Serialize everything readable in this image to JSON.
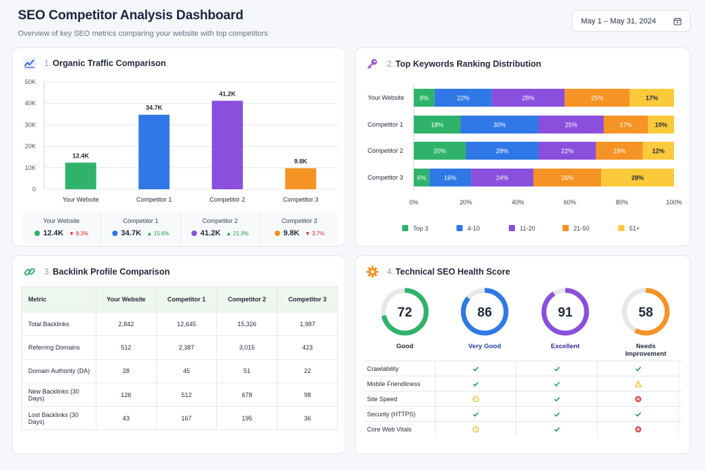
{
  "header": {
    "title": "SEO Competitor Analysis Dashboard",
    "subtitle": "Overview of key SEO metrics comparing your website with top competitors",
    "date_range": "May 1 – May 31, 2024",
    "calendar_icon": "calendar-icon"
  },
  "colors": {
    "green": "#2fb36b",
    "blue": "#2f78e6",
    "purple": "#8a4fdc",
    "orange": "#f59324",
    "yellow": "#fcc93a",
    "red": "#e24747"
  },
  "traffic": {
    "num": "1.",
    "title": "Organic Traffic Comparison",
    "icon": "trend-chart-icon",
    "stats": [
      {
        "label": "Your Website",
        "value": "12.4K",
        "change": "8.3%",
        "dir": "down",
        "color": "#2fb36b"
      },
      {
        "label": "Competitor 1",
        "value": "34.7K",
        "change": "15.6%",
        "dir": "up",
        "color": "#2f78e6"
      },
      {
        "label": "Competitor 2",
        "value": "41.2K",
        "change": "21.3%",
        "dir": "up",
        "color": "#8a4fdc"
      },
      {
        "label": "Competitor 3",
        "value": "9.8K",
        "change": "3.7%",
        "dir": "down",
        "color": "#f59324"
      }
    ]
  },
  "keywords": {
    "num": "2.",
    "title": "Top Keywords Ranking Distribution",
    "icon": "key-icon"
  },
  "backlinks": {
    "num": "3.",
    "title": "Backlink Profile Comparison",
    "icon": "link-icon",
    "columns": [
      "Metric",
      "Your Website",
      "Competitor 1",
      "Competitor 2",
      "Competitor 3"
    ],
    "rows": [
      [
        "Total Backlinks",
        "2,842",
        "12,645",
        "15,326",
        "1,987"
      ],
      [
        "Referring Domains",
        "512",
        "2,387",
        "3,015",
        "423"
      ],
      [
        "Domain Authority (DA)",
        "28",
        "45",
        "51",
        "22"
      ],
      [
        "New Backlinks (30 Days)",
        "126",
        "512",
        "678",
        "98"
      ],
      [
        "Lost Backlinks (30 Days)",
        "43",
        "167",
        "195",
        "36"
      ]
    ]
  },
  "technical": {
    "num": "4.",
    "title": "Technical SEO Health Score",
    "icon": "gear-icon",
    "scores": [
      {
        "value": 72,
        "label": "Good",
        "color": "#2fb36b",
        "label_color": "#1f2937"
      },
      {
        "value": 86,
        "label": "Very Good",
        "color": "#2f78e6",
        "label_color": "#1e40af"
      },
      {
        "value": 91,
        "label": "Excellent",
        "color": "#8a4fdc",
        "label_color": "#3b2a99"
      },
      {
        "value": 58,
        "label": "Needs Improvement",
        "color": "#f59324",
        "label_color": "#1f2937"
      }
    ],
    "checks": [
      {
        "name": "Crawlability",
        "status": [
          "check",
          "check",
          "check"
        ]
      },
      {
        "name": "Mobile Friendliness",
        "status": [
          "check",
          "check",
          "warning"
        ]
      },
      {
        "name": "Site Speed",
        "status": [
          "info",
          "check",
          "error"
        ]
      },
      {
        "name": "Security (HTTPS)",
        "status": [
          "check",
          "check",
          "check"
        ]
      },
      {
        "name": "Core Web Vitals",
        "status": [
          "info",
          "check",
          "error"
        ]
      }
    ]
  },
  "chart_data": [
    {
      "type": "bar",
      "title": "Organic Traffic Comparison",
      "categories": [
        "Your Website",
        "Competitor 1",
        "Competitor 2",
        "Competitor 3"
      ],
      "values": [
        12.4,
        34.7,
        41.2,
        9.8
      ],
      "value_labels": [
        "12.4K",
        "34.7K",
        "41.2K",
        "9.8K"
      ],
      "colors": [
        "#2fb36b",
        "#2f78e6",
        "#8a4fdc",
        "#f59324"
      ],
      "yticks": [
        "0",
        "10K",
        "20K",
        "30K",
        "40K",
        "50K"
      ],
      "ylim": [
        0,
        50
      ],
      "grid": true
    },
    {
      "type": "bar",
      "orientation": "horizontal-stacked-percent",
      "title": "Top Keywords Ranking Distribution",
      "categories": [
        "Your Website",
        "Competitor 1",
        "Competitor 2",
        "Competitor 3"
      ],
      "series": [
        {
          "name": "Top 3",
          "color": "#2fb36b",
          "values": [
            8,
            18,
            20,
            6
          ]
        },
        {
          "name": "4-10",
          "color": "#2f78e6",
          "values": [
            22,
            30,
            28,
            16
          ]
        },
        {
          "name": "11-20",
          "color": "#8a4fdc",
          "values": [
            28,
            25,
            22,
            24
          ]
        },
        {
          "name": "21-50",
          "color": "#f59324",
          "values": [
            25,
            17,
            18,
            26
          ]
        },
        {
          "name": "51+",
          "color": "#fcc93a",
          "values": [
            17,
            10,
            12,
            28
          ]
        }
      ],
      "xticks": [
        "0%",
        "20%",
        "40%",
        "60%",
        "80%",
        "100%"
      ],
      "xlim": [
        0,
        100
      ],
      "legend": "bottom"
    }
  ]
}
